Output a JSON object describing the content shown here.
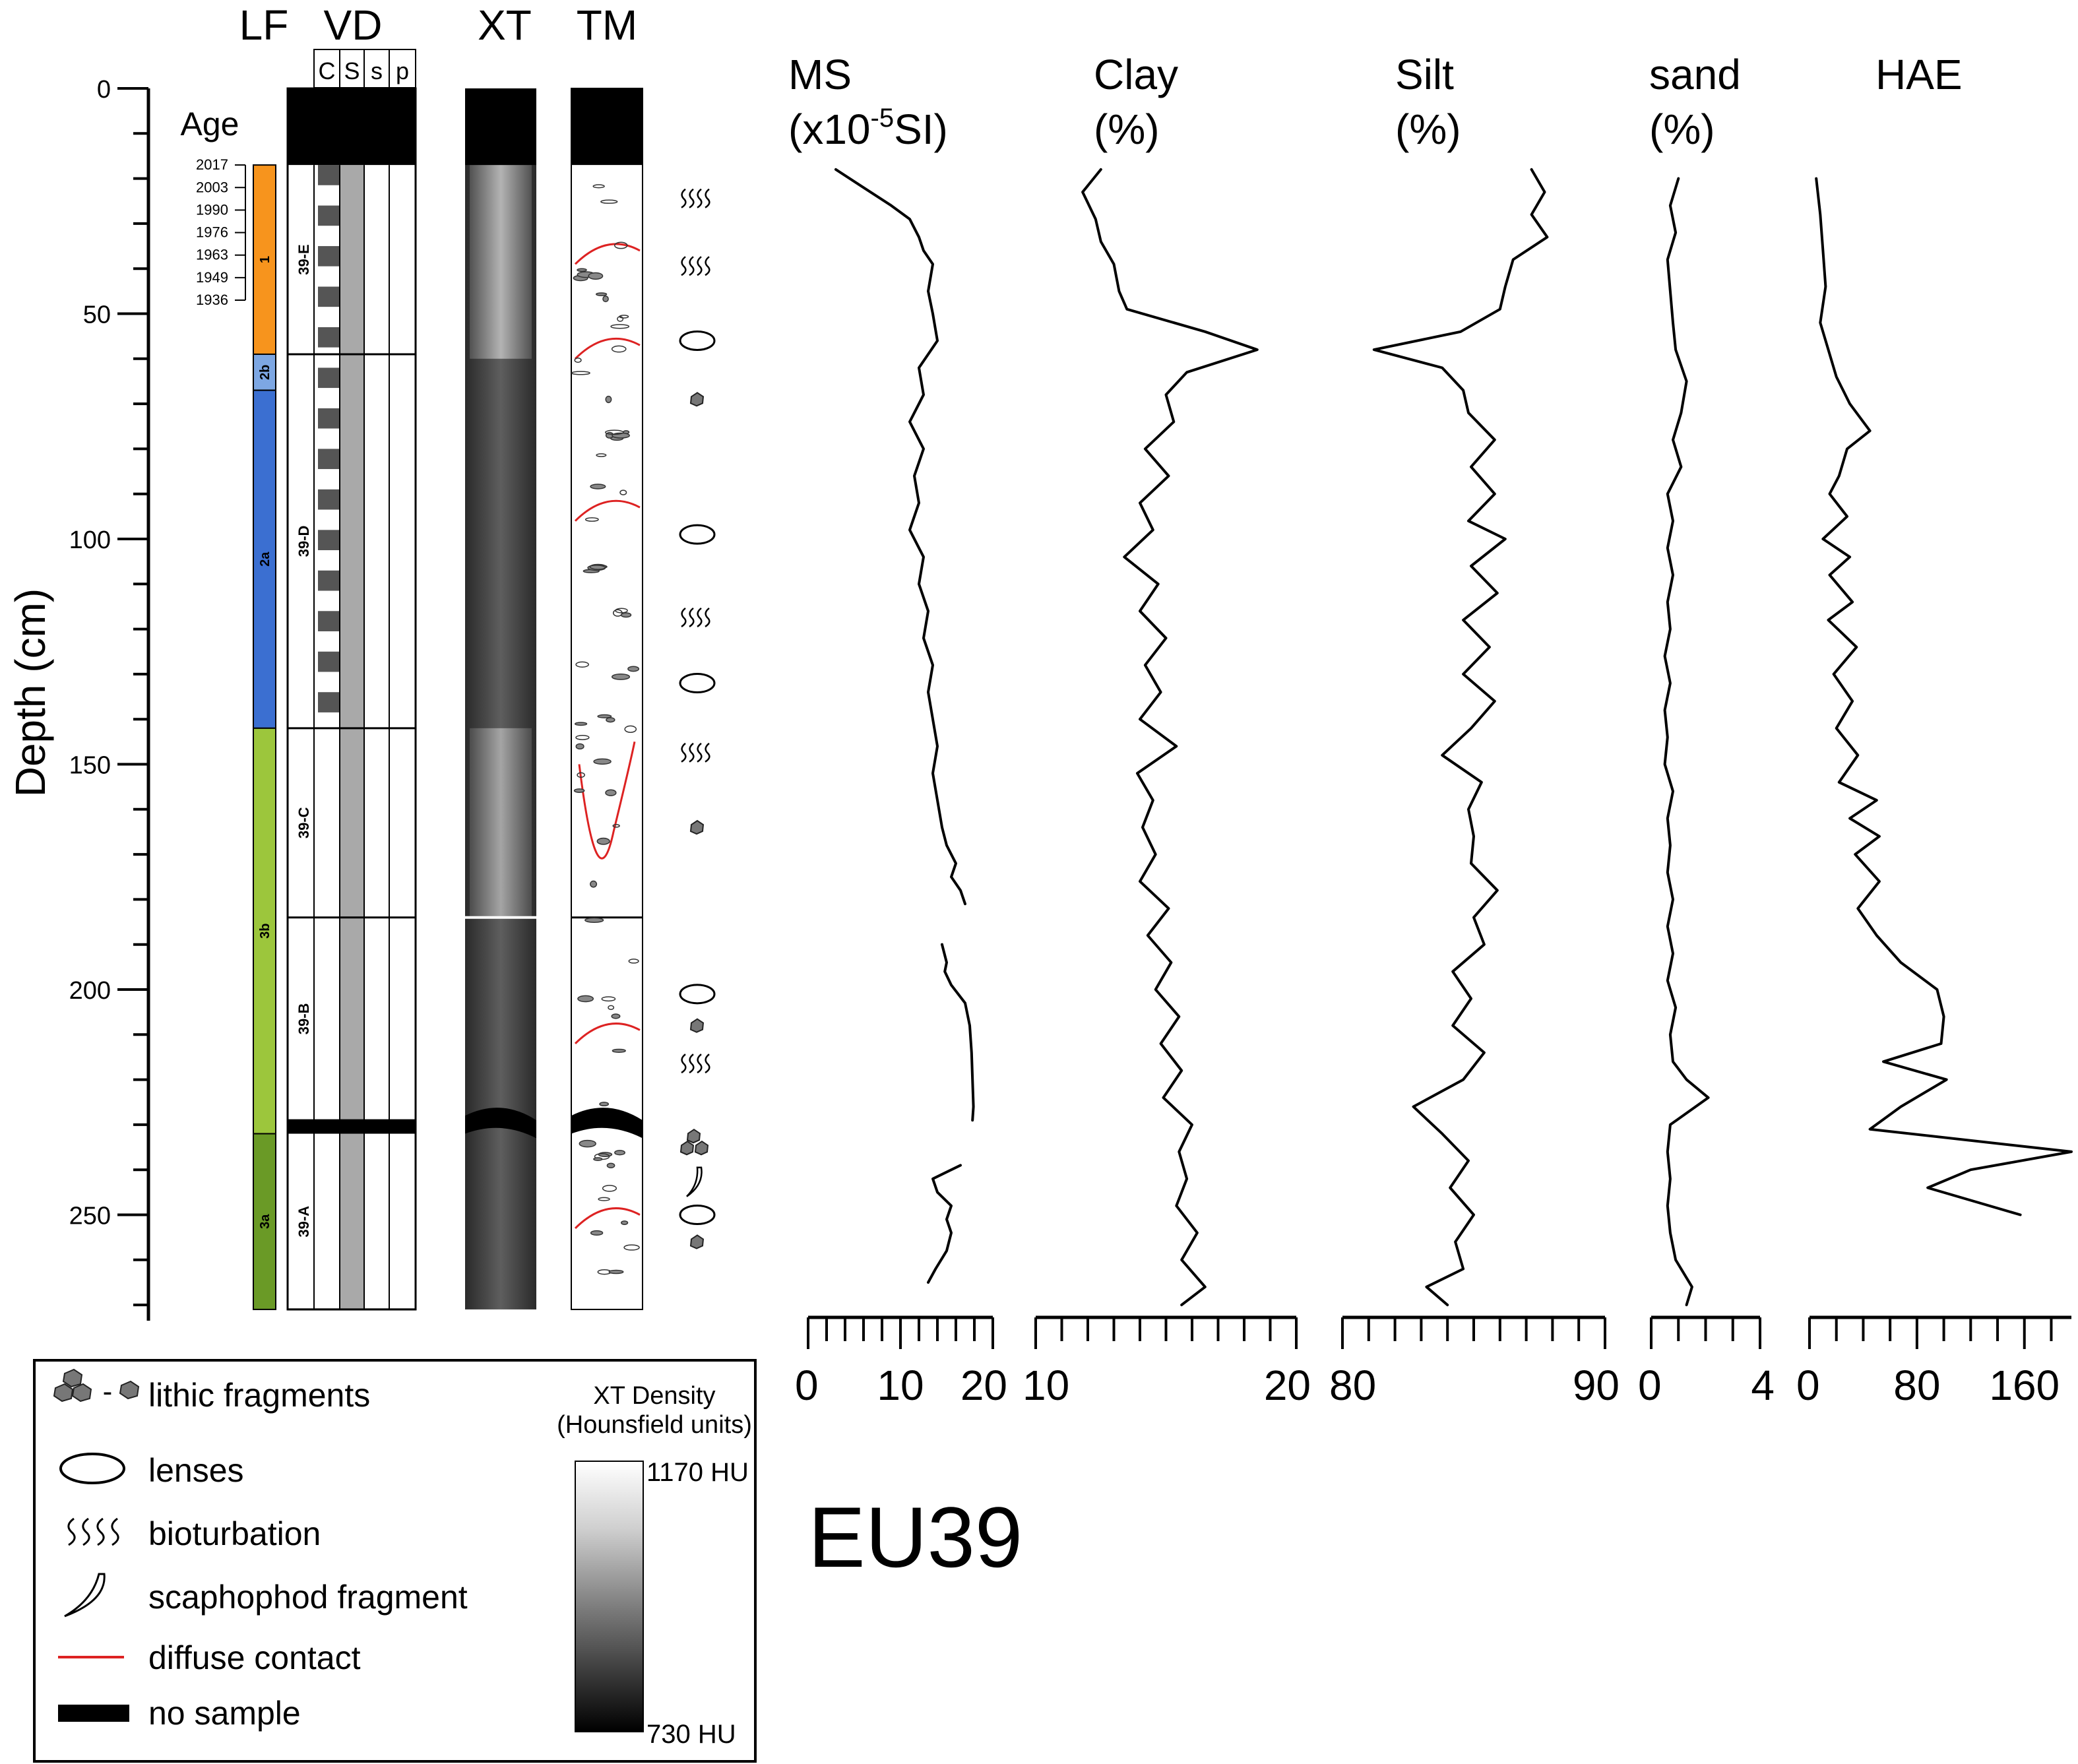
{
  "figure_label": "EU39",
  "column_headers": {
    "lf": "LF",
    "vd": "VD",
    "xt": "XT",
    "tm": "TM"
  },
  "vd_subheaders": [
    "C",
    "S",
    "s",
    "p"
  ],
  "depth_axis": {
    "label": "Depth (cm)",
    "ticks": [
      0,
      50,
      100,
      150,
      200,
      250
    ],
    "range": [
      0,
      271
    ]
  },
  "age": {
    "title": "Age",
    "years": [
      "2017",
      "2003",
      "1990",
      "1976",
      "1963",
      "1949",
      "1936"
    ],
    "depths": [
      17,
      22,
      27,
      32,
      37,
      42,
      47
    ]
  },
  "lithofacies": [
    {
      "label": "1",
      "top": 17,
      "bottom": 59,
      "color": "#f7941d"
    },
    {
      "label": "2b",
      "top": 59,
      "bottom": 67,
      "color": "#7da7e3"
    },
    {
      "label": "2a",
      "top": 67,
      "bottom": 142,
      "color": "#3b6fd1"
    },
    {
      "label": "3b",
      "top": 142,
      "bottom": 232,
      "color": "#9cc63c"
    },
    {
      "label": "3a",
      "top": 232,
      "bottom": 271,
      "color": "#6a9a26"
    }
  ],
  "core_sections": [
    {
      "label": "39-E",
      "top": 17,
      "bottom": 59
    },
    {
      "label": "39-D",
      "top": 59,
      "bottom": 142
    },
    {
      "label": "39-C",
      "top": 142,
      "bottom": 184
    },
    {
      "label": "39-B",
      "top": 184,
      "bottom": 229
    },
    {
      "label": "39-A",
      "top": 232,
      "bottom": 271
    }
  ],
  "no_sample_intervals": [
    [
      0,
      17
    ],
    [
      229,
      232
    ]
  ],
  "diffuse_contacts": [
    36,
    57,
    93,
    172,
    209,
    250
  ],
  "features": [
    {
      "type": "bioturbation",
      "depth": 25
    },
    {
      "type": "bioturbation",
      "depth": 40
    },
    {
      "type": "lens",
      "depth": 56
    },
    {
      "type": "lithic",
      "depth": 69
    },
    {
      "type": "lens",
      "depth": 99
    },
    {
      "type": "bioturbation",
      "depth": 118
    },
    {
      "type": "lens",
      "depth": 132
    },
    {
      "type": "bioturbation",
      "depth": 148
    },
    {
      "type": "lithic",
      "depth": 164
    },
    {
      "type": "lens",
      "depth": 201
    },
    {
      "type": "lithic",
      "depth": 208
    },
    {
      "type": "bioturbation",
      "depth": 217
    },
    {
      "type": "lithic",
      "depth": 234
    },
    {
      "type": "scaphopod",
      "depth": 243
    },
    {
      "type": "lens",
      "depth": 250
    },
    {
      "type": "lithic",
      "depth": 256
    }
  ],
  "legend": {
    "lithic": "lithic fragments",
    "lithic_sep": "-",
    "lenses": "lenses",
    "bioturbation": "bioturbation",
    "scaphopod": "scaphophod fragment",
    "diffuse": "diffuse contact",
    "nosample": "no sample",
    "xt_title_1": "XT Density",
    "xt_title_2": "(Hounsfield units)",
    "xt_max": "1170 HU",
    "xt_min": "730 HU"
  },
  "chart_data": [
    {
      "type": "line",
      "title": "MS (x10-5SI)",
      "title_line1": "MS",
      "title_line2_pre": "(x10",
      "title_sup": "-5",
      "title_line2_post": "SI)",
      "xlim": [
        0,
        20
      ],
      "xtick_labels": [
        "0",
        "10",
        "20"
      ],
      "xtick_values": [
        0,
        10,
        20
      ],
      "minor_step": 2,
      "segments": [
        {
          "depth": [
            18,
            22,
            26,
            29,
            33,
            36,
            39,
            45,
            50,
            56,
            62,
            68,
            74,
            80,
            86,
            92,
            98,
            104,
            110,
            116,
            122,
            128,
            134,
            140,
            146,
            152,
            158,
            164,
            168,
            172,
            175,
            178,
            181
          ],
          "value": [
            3,
            6,
            9,
            11,
            12,
            12.5,
            13.5,
            13,
            13.5,
            14,
            12,
            12.5,
            11,
            12.5,
            11.5,
            12,
            11,
            12.5,
            12,
            13,
            12.5,
            13.5,
            13,
            13.5,
            14,
            13.5,
            14,
            14.5,
            15,
            16,
            15.5,
            16.5,
            17
          ]
        },
        {
          "depth": [
            190,
            194,
            196,
            199,
            203,
            208,
            214,
            220,
            226,
            229
          ],
          "value": [
            14.5,
            15,
            14.8,
            15.5,
            17,
            17.5,
            17.7,
            17.8,
            17.9,
            17.8
          ]
        },
        {
          "depth": [
            239,
            242,
            245,
            248,
            251,
            254,
            258,
            262,
            265
          ],
          "value": [
            16.5,
            13.5,
            14,
            15.5,
            15,
            15.5,
            15,
            13.8,
            13
          ]
        }
      ]
    },
    {
      "type": "line",
      "title": "Clay (%)",
      "title_line1": "Clay",
      "title_line2": "(%)",
      "xlim": [
        10,
        20
      ],
      "xtick_labels": [
        "10",
        "20"
      ],
      "xtick_values": [
        10,
        20
      ],
      "minor_step": 1,
      "segments": [
        {
          "depth": [
            18,
            23,
            29,
            34,
            39,
            45,
            49,
            54,
            58,
            63,
            68,
            74,
            80,
            86,
            92,
            98,
            104,
            110,
            116,
            122,
            128,
            134,
            140,
            146,
            152,
            158,
            164,
            170,
            176,
            182,
            188,
            194,
            200,
            206,
            212,
            218,
            224,
            230,
            236,
            242,
            248,
            254,
            260,
            266,
            270
          ],
          "value": [
            12.5,
            11.8,
            12.3,
            12.5,
            13,
            13.2,
            13.5,
            16.5,
            18.5,
            15.8,
            15,
            15.3,
            14.2,
            15.1,
            14.0,
            14.5,
            13.4,
            14.7,
            14.0,
            15.0,
            14.2,
            14.8,
            14.0,
            15.4,
            13.9,
            14.5,
            14.1,
            14.6,
            14.0,
            15.1,
            14.3,
            15.2,
            14.6,
            15.5,
            14.8,
            15.6,
            14.9,
            16.0,
            15.5,
            15.8,
            15.4,
            16.2,
            15.6,
            16.5,
            15.6
          ]
        }
      ]
    },
    {
      "type": "line",
      "title": "Silt (%)",
      "title_line1": "Silt",
      "title_line2": "(%)",
      "xlim": [
        80,
        90
      ],
      "xtick_labels": [
        "80",
        "90"
      ],
      "xtick_values": [
        80,
        90
      ],
      "minor_step": 1,
      "segments": [
        {
          "depth": [
            18,
            23,
            28,
            33,
            38,
            44,
            49,
            54,
            58,
            62,
            67,
            72,
            78,
            84,
            90,
            96,
            100,
            106,
            112,
            118,
            124,
            130,
            136,
            142,
            148,
            154,
            160,
            166,
            172,
            178,
            184,
            190,
            196,
            202,
            208,
            214,
            220,
            226,
            232,
            238,
            244,
            250,
            256,
            262,
            266,
            270
          ],
          "value": [
            87.2,
            87.7,
            87.2,
            87.8,
            86.5,
            86.2,
            86.0,
            84.5,
            81.2,
            83.8,
            84.6,
            84.8,
            85.8,
            84.9,
            85.8,
            84.8,
            86.2,
            84.9,
            85.9,
            84.6,
            85.6,
            84.6,
            85.8,
            84.9,
            83.8,
            85.3,
            84.8,
            85.0,
            84.9,
            85.9,
            85.0,
            85.4,
            84.2,
            84.9,
            84.2,
            85.4,
            84.6,
            82.7,
            83.8,
            84.8,
            84.1,
            85.0,
            84.3,
            84.6,
            83.2,
            84.0
          ]
        }
      ]
    },
    {
      "type": "line",
      "title": "sand (%)",
      "title_line1": "sand",
      "title_line2": "(%)",
      "xlim": [
        0,
        4
      ],
      "xtick_labels": [
        "0",
        "4"
      ],
      "xtick_values": [
        0,
        4
      ],
      "minor_step": 1,
      "segments": [
        {
          "depth": [
            20,
            26,
            32,
            38,
            45,
            52,
            58,
            65,
            72,
            78,
            84,
            90,
            96,
            102,
            108,
            114,
            120,
            126,
            132,
            138,
            144,
            150,
            156,
            162,
            168,
            174,
            180,
            186,
            192,
            198,
            204,
            210,
            216,
            220,
            224,
            230,
            236,
            242,
            248,
            254,
            260,
            266,
            270
          ],
          "value": [
            1.0,
            0.7,
            0.9,
            0.6,
            0.7,
            0.8,
            0.9,
            1.3,
            1.1,
            0.8,
            1.1,
            0.6,
            0.8,
            0.6,
            0.8,
            0.6,
            0.7,
            0.5,
            0.7,
            0.5,
            0.6,
            0.5,
            0.8,
            0.6,
            0.7,
            0.6,
            0.8,
            0.6,
            0.8,
            0.6,
            0.9,
            0.7,
            0.8,
            1.3,
            2.1,
            0.7,
            0.6,
            0.7,
            0.6,
            0.7,
            0.9,
            1.5,
            1.3
          ]
        }
      ]
    },
    {
      "type": "line",
      "title": "HAE",
      "title_line1": "HAE",
      "xlim": [
        0,
        195
      ],
      "xtick_labels": [
        "0",
        "80",
        "160"
      ],
      "xtick_values": [
        0,
        80,
        160
      ],
      "minor_step": 20,
      "segments": [
        {
          "depth": [
            20,
            28,
            36,
            44,
            52,
            58,
            64,
            70,
            76,
            80,
            86,
            90,
            95,
            100,
            104,
            108,
            114,
            118,
            124,
            130,
            136,
            142,
            148,
            154,
            158,
            162,
            166,
            170,
            176,
            182,
            188,
            194,
            200,
            206,
            212,
            216,
            220,
            226,
            231,
            236,
            240,
            244,
            250
          ],
          "value": [
            5,
            8,
            10,
            12,
            8,
            14,
            20,
            30,
            45,
            28,
            22,
            15,
            28,
            10,
            30,
            15,
            32,
            14,
            35,
            18,
            32,
            20,
            36,
            22,
            50,
            30,
            52,
            34,
            52,
            36,
            50,
            68,
            95,
            100,
            98,
            55,
            102,
            68,
            45,
            195,
            120,
            88,
            157
          ]
        }
      ]
    }
  ]
}
